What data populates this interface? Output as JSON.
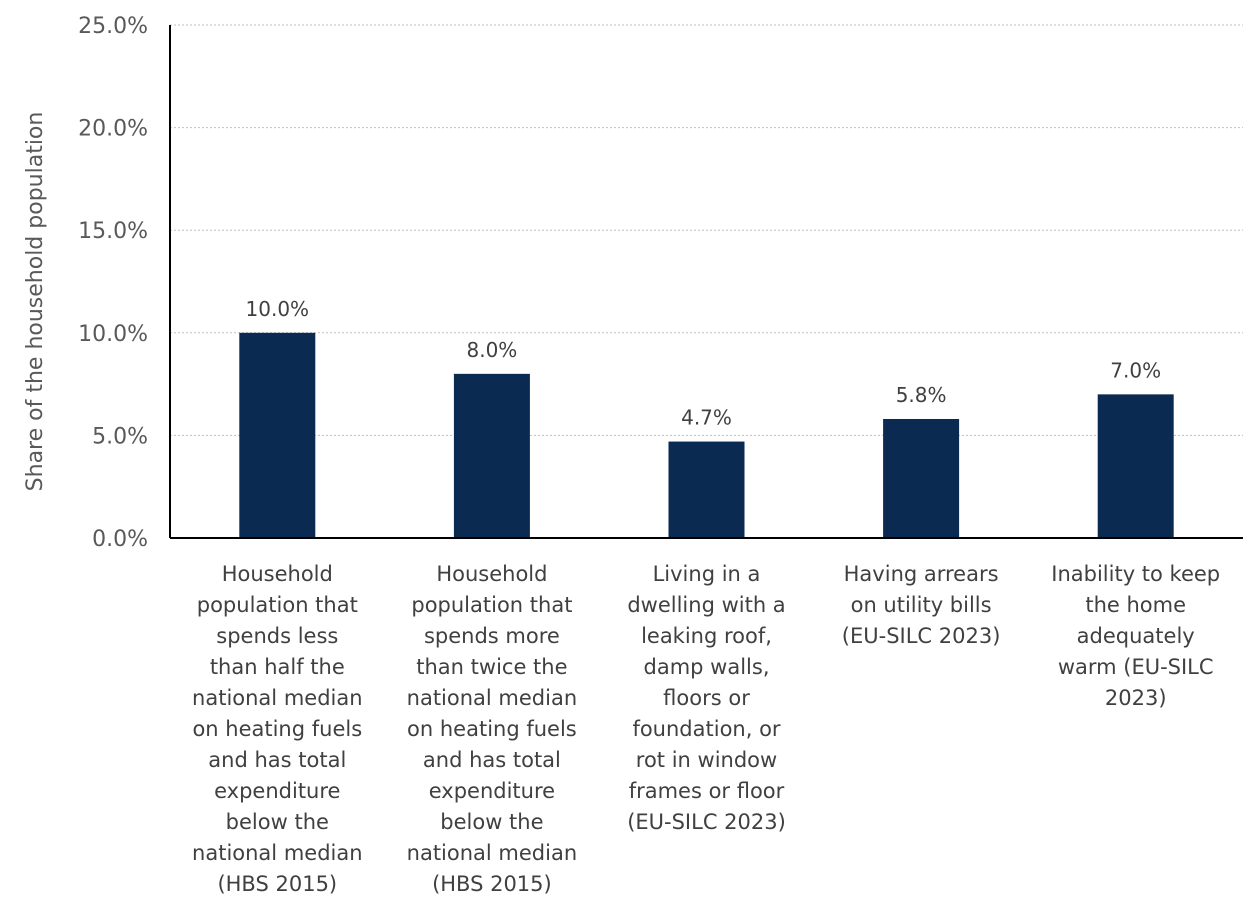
{
  "chart_data": {
    "type": "bar",
    "title": "",
    "xlabel": "",
    "ylabel": "Share of the household population",
    "ylim": [
      0,
      25
    ],
    "yticks": [
      "0.0%",
      "5.0%",
      "10.0%",
      "15.0%",
      "20.0%",
      "25.0%"
    ],
    "ytick_values": [
      0,
      5,
      10,
      15,
      20,
      25
    ],
    "grid": true,
    "bar_color": "#0a2a52",
    "categories": [
      [
        "Household",
        "population that",
        "spends less",
        "than half the",
        "national median",
        "on heating fuels",
        "and has total",
        "expenditure",
        "below the",
        "national median",
        "(HBS 2015)"
      ],
      [
        "Household",
        "population that",
        "spends more",
        "than twice the",
        "national median",
        "on heating fuels",
        "and has total",
        "expenditure",
        "below the",
        "national median",
        "(HBS 2015)"
      ],
      [
        "Living in a",
        "dwelling with a",
        "leaking roof,",
        "damp walls,",
        "floors or",
        "foundation, or",
        "rot in window",
        "frames or floor",
        "(EU-SILC 2023)"
      ],
      [
        "Having arrears",
        "on utility bills",
        "(EU-SILC 2023)"
      ],
      [
        "Inability to keep",
        "the home",
        "adequately",
        "warm (EU-SILC",
        "2023)"
      ]
    ],
    "values": [
      10.0,
      8.0,
      4.7,
      5.8,
      7.0
    ],
    "value_labels": [
      "10.0%",
      "8.0%",
      "4.7%",
      "5.8%",
      "7.0%"
    ]
  }
}
